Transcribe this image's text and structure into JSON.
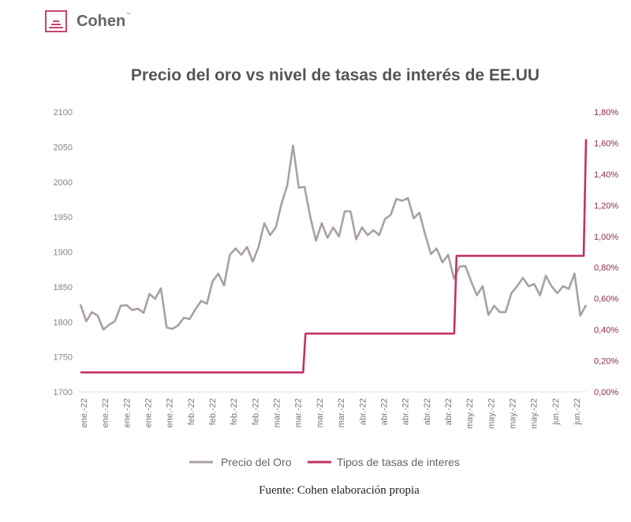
{
  "brand": {
    "name": "Cohen",
    "tm": "™",
    "accent": "#c8436e"
  },
  "source": "Fuente: Cohen elaboración propia",
  "chart_data": {
    "type": "line",
    "title": "Precio del oro vs nivel de tasas de interés de EE.UU",
    "x_range": [
      "2022-01-03",
      "2022-06-16"
    ],
    "x_tick_labels": [
      "ene.-22",
      "ene.-22",
      "ene.-22",
      "ene.-22",
      "ene.-22",
      "feb.-22",
      "feb.-22",
      "feb.-22",
      "feb.-22",
      "mar.-22",
      "mar.-22",
      "mar.-22",
      "mar.-22",
      "abr.-22",
      "abr.-22",
      "abr.-22",
      "abr.-22",
      "abr.-22",
      "may.-22",
      "may.-22",
      "may.-22",
      "may.-22",
      "jun.-22",
      "jun.-22"
    ],
    "y_left": {
      "lim": [
        1700,
        2100
      ],
      "ticks": [
        "1700",
        "1750",
        "1800",
        "1850",
        "1900",
        "1950",
        "2000",
        "2050",
        "2100"
      ]
    },
    "y_right": {
      "lim": [
        0,
        1.8
      ],
      "ticks": [
        "0,00%",
        "0,20%",
        "0,40%",
        "0,60%",
        "0,80%",
        "1,00%",
        "1,20%",
        "1,40%",
        "1,60%",
        "1,80%"
      ]
    },
    "grid": false,
    "legend_placement": "bottom",
    "series": [
      {
        "name": "Precio del Oro",
        "axis": "left",
        "color": "#aaa0a1",
        "values": [
          1825,
          1801,
          1814,
          1809,
          1789,
          1796,
          1801,
          1823,
          1824,
          1817,
          1819,
          1813,
          1840,
          1833,
          1848,
          1792,
          1790,
          1795,
          1806,
          1804,
          1818,
          1830,
          1826,
          1858,
          1869,
          1852,
          1896,
          1905,
          1896,
          1907,
          1886,
          1907,
          1941,
          1924,
          1935,
          1969,
          1995,
          2052,
          1992,
          1993,
          1950,
          1916,
          1941,
          1920,
          1935,
          1922,
          1958,
          1958,
          1918,
          1935,
          1924,
          1931,
          1924,
          1947,
          1953,
          1976,
          1973,
          1977,
          1948,
          1956,
          1925,
          1897,
          1905,
          1885,
          1896,
          1862,
          1879,
          1880,
          1858,
          1838,
          1851,
          1810,
          1823,
          1814,
          1814,
          1841,
          1851,
          1863,
          1851,
          1854,
          1838,
          1866,
          1851,
          1841,
          1851,
          1847,
          1869,
          1809,
          1824
        ]
      },
      {
        "name": "Tipos de tasas de interes",
        "axis": "right",
        "color": "#c2306a",
        "step": true,
        "points": [
          [
            "2022-01-03",
            0.125
          ],
          [
            "2022-03-17",
            0.375
          ],
          [
            "2022-05-05",
            0.875
          ],
          [
            "2022-06-16",
            1.625
          ]
        ]
      }
    ]
  }
}
